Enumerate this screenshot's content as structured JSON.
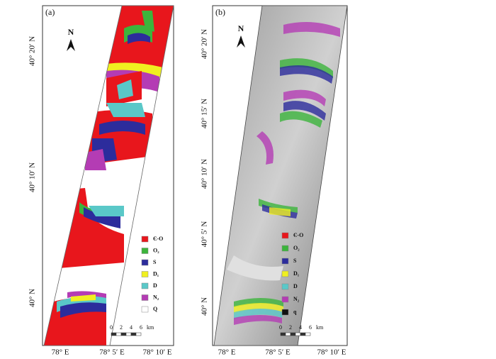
{
  "panels": [
    {
      "label": "(a)",
      "north": "N",
      "y_labels": [
        "40° 20′ N",
        "40° 10′ N",
        "40° N"
      ],
      "x_labels": [
        "78° E",
        "78° 5′ E",
        "78° 10′ E"
      ],
      "legend": [
        {
          "label": "Є-O",
          "color": "#e8161c"
        },
        {
          "label": "O₂",
          "color": "#3cb43c"
        },
        {
          "label": "S",
          "color": "#2c2c9c"
        },
        {
          "label": "D₁",
          "color": "#f0f020"
        },
        {
          "label": "D",
          "color": "#5ac8c8"
        },
        {
          "label": "N₂",
          "color": "#b43cb4"
        },
        {
          "label": "Q",
          "color": "#ffffff"
        }
      ],
      "scale": {
        "ticks": [
          "0",
          "2",
          "4",
          "6"
        ],
        "unit": "km"
      }
    },
    {
      "label": "(b)",
      "north": "N",
      "y_labels": [
        "40° 20′ N",
        "40° 15′ N",
        "40° 10′ N",
        "40° 5′ N",
        "40° N"
      ],
      "x_labels": [
        "78° E",
        "78° 5′ E",
        "78° 10′ E"
      ],
      "legend": [
        {
          "label": "Є-O",
          "color": "#e8161c"
        },
        {
          "label": "O₂",
          "color": "#3cb43c"
        },
        {
          "label": "S",
          "color": "#2c2c9c"
        },
        {
          "label": "D₁",
          "color": "#f0f020"
        },
        {
          "label": "D",
          "color": "#5ac8c8"
        },
        {
          "label": "N₂",
          "color": "#b43cb4"
        },
        {
          "label": "q",
          "color": "#111111"
        }
      ],
      "scale": {
        "ticks": [
          "0",
          "2",
          "4",
          "6"
        ],
        "unit": "km"
      }
    }
  ]
}
